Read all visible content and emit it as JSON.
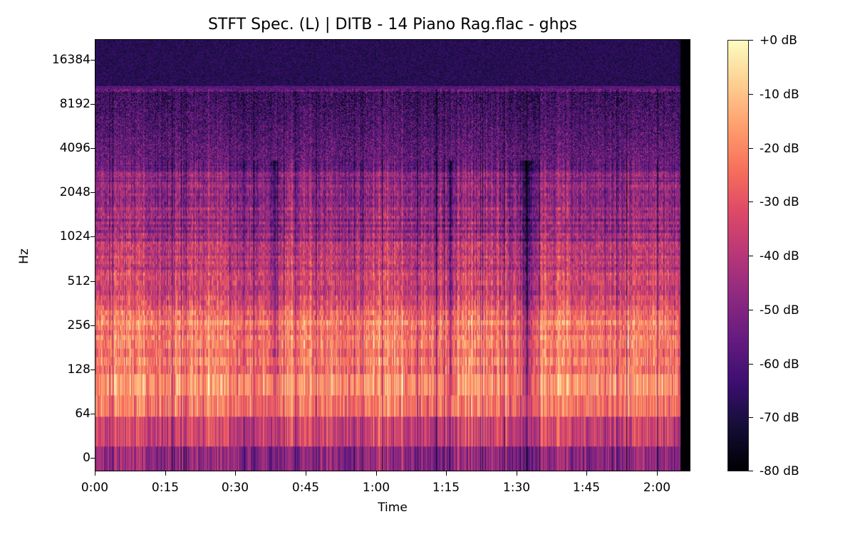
{
  "chart_data": {
    "type": "heatmap",
    "subtype": "spectrogram",
    "title": "STFT Spec. (L) | DITB - 14 Piano Rag.flac - ghps",
    "xlabel": "Time",
    "ylabel": "Hz",
    "x_scale": "time",
    "y_scale": "log2",
    "x_ticks": [
      "0:00",
      "0:15",
      "0:30",
      "0:45",
      "1:00",
      "1:15",
      "1:30",
      "1:45",
      "2:00"
    ],
    "x_tick_seconds": [
      0,
      15,
      30,
      45,
      60,
      75,
      90,
      105,
      120
    ],
    "xlim_seconds": [
      0,
      127
    ],
    "audio_end_seconds": 125,
    "y_ticks": [
      "16384",
      "8192",
      "4096",
      "2048",
      "1024",
      "512",
      "256",
      "128",
      "64",
      "0"
    ],
    "y_tick_hz": [
      16384,
      8192,
      4096,
      2048,
      1024,
      512,
      256,
      128,
      64,
      0
    ],
    "lowpass_cutoff_hz": 10500,
    "colormap": "magma",
    "colorbar": {
      "labels": [
        "+0 dB",
        "-10 dB",
        "-20 dB",
        "-30 dB",
        "-40 dB",
        "-50 dB",
        "-60 dB",
        "-70 dB",
        "-80 dB"
      ],
      "values_db": [
        0,
        -10,
        -20,
        -30,
        -40,
        -50,
        -60,
        -70,
        -80
      ],
      "range_db": [
        -80,
        0
      ]
    },
    "energy_profile_db_by_band": {
      "0-40Hz": -48,
      "40-100Hz": -35,
      "100-300Hz": -25,
      "300-900Hz": -38,
      "900-4000Hz": -52,
      "4000-10500Hz": -63,
      "above-10500Hz": -75
    },
    "grid": false,
    "legend": "colorbar-right"
  },
  "colors": {
    "background": "#ffffff",
    "axes_frame": "#000000"
  }
}
